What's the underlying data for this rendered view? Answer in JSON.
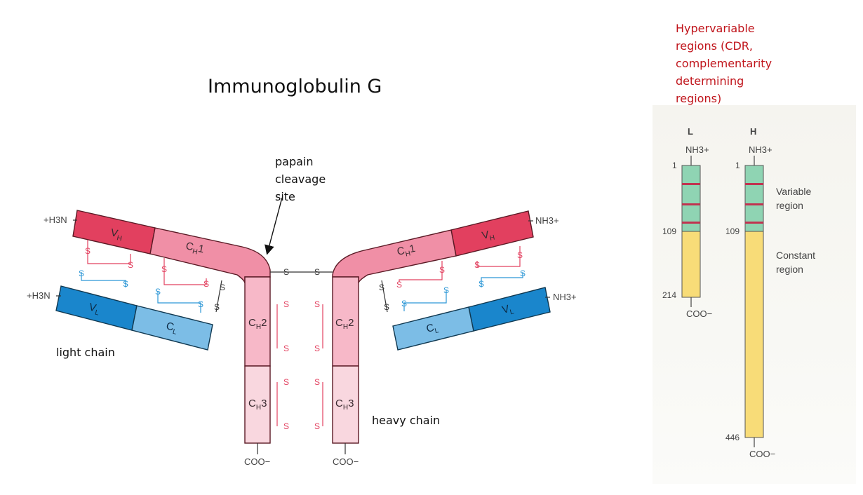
{
  "title": "Immunoglobulin G",
  "papain": [
    "papain",
    "cleavage",
    "site"
  ],
  "light_chain_label": "light chain",
  "heavy_chain_label": "heavy chain",
  "cdr_note": [
    "Hypervariable",
    "regions (CDR,",
    "complementarity",
    "determining",
    "regions)"
  ],
  "diagram": {
    "n_term_left": "+H3N",
    "n_term_right": "NH3+",
    "c_term": "COO−",
    "disulfide": "S",
    "domains": {
      "vh": "V",
      "vl": "V",
      "ch1": "C",
      "cl": "C",
      "ch2": "C",
      "ch3": "C"
    },
    "subscripts": {
      "vh": "H",
      "vl": "L",
      "ch1": "H",
      "cl": "L",
      "ch2": "H",
      "ch3": "H"
    },
    "suffixes": {
      "ch1": "1",
      "ch2": "2",
      "ch3": "3"
    }
  },
  "chains": {
    "light": {
      "header": "L",
      "n_term": "NH3+",
      "c_term": "COO−",
      "start": "1",
      "variable_end": "109",
      "end": "214"
    },
    "heavy": {
      "header": "H",
      "n_term": "NH3+",
      "c_term": "COO−",
      "start": "1",
      "variable_end": "109",
      "end": "446"
    },
    "variable_region": [
      "Variable",
      "region"
    ],
    "constant_region": [
      "Constant",
      "region"
    ]
  },
  "colors": {
    "vh": "#e2405f",
    "ch1": "#f08fa6",
    "ch_light": "#f7b8c8",
    "ch3": "#f9d7df",
    "vl": "#1a86cc",
    "cl": "#7cbde6",
    "ss_heavy": "#e2405f",
    "ss_light": "#2c97d6",
    "variable_green": "#8fd4b3",
    "constant_yellow": "#f8dc78",
    "hypervariable": "#c03350",
    "cdr_text": "#c0141b"
  }
}
